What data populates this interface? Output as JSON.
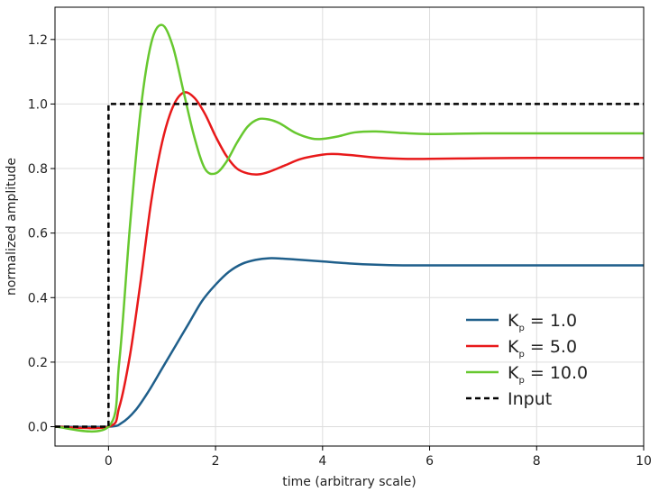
{
  "chart_data": {
    "type": "line",
    "title": "",
    "xlabel": "time (arbitrary scale)",
    "ylabel": "normalized amplitude",
    "xlim": [
      -1,
      10
    ],
    "ylim": [
      -0.06,
      1.3
    ],
    "xticks": [
      0,
      2,
      4,
      6,
      8,
      10
    ],
    "xtick_labels": [
      "0",
      "2",
      "4",
      "6",
      "8",
      "10"
    ],
    "yticks": [
      0.0,
      0.2,
      0.4,
      0.6,
      0.8,
      1.0,
      1.2
    ],
    "ytick_labels": [
      "0.0",
      "0.2",
      "0.4",
      "0.6",
      "0.8",
      "1.0",
      "1.2"
    ],
    "grid": true,
    "legend_position": "bottom-right",
    "series": [
      {
        "name": "K",
        "name_sub": "p",
        "name_suffix": " = 1.0",
        "color": "#1f5f8b",
        "dash": false,
        "x": [
          -1,
          0,
          0.25,
          0.5,
          0.75,
          1.0,
          1.25,
          1.5,
          1.75,
          2.0,
          2.25,
          2.5,
          2.75,
          3.0,
          3.25,
          3.5,
          4.0,
          4.5,
          5.0,
          5.5,
          6.0,
          7.0,
          8.0,
          9.0,
          10.0
        ],
        "y": [
          0,
          0,
          0.012,
          0.05,
          0.11,
          0.18,
          0.25,
          0.32,
          0.39,
          0.44,
          0.48,
          0.505,
          0.517,
          0.522,
          0.521,
          0.518,
          0.512,
          0.506,
          0.502,
          0.5,
          0.5,
          0.5,
          0.5,
          0.5,
          0.5
        ]
      },
      {
        "name": "K",
        "name_sub": "p",
        "name_suffix": " = 5.0",
        "color": "#e8191a",
        "dash": false,
        "x": [
          -1,
          0,
          0.2,
          0.4,
          0.6,
          0.8,
          1.0,
          1.2,
          1.4,
          1.6,
          1.8,
          2.0,
          2.2,
          2.4,
          2.6,
          2.8,
          3.0,
          3.3,
          3.6,
          4.0,
          4.2,
          4.5,
          5.0,
          5.5,
          6.0,
          7.0,
          8.0,
          9.0,
          10.0
        ],
        "y": [
          0,
          0,
          0.06,
          0.22,
          0.45,
          0.7,
          0.88,
          0.99,
          1.035,
          1.02,
          0.97,
          0.9,
          0.84,
          0.8,
          0.785,
          0.782,
          0.79,
          0.81,
          0.83,
          0.843,
          0.845,
          0.842,
          0.834,
          0.83,
          0.83,
          0.832,
          0.833,
          0.833,
          0.833
        ]
      },
      {
        "name": "K",
        "name_sub": "p",
        "name_suffix": " = 10.0",
        "color": "#67c82f",
        "dash": false,
        "x": [
          -1,
          0,
          0.2,
          0.4,
          0.6,
          0.8,
          1.0,
          1.2,
          1.4,
          1.6,
          1.8,
          2.0,
          2.2,
          2.4,
          2.6,
          2.8,
          3.0,
          3.2,
          3.5,
          3.8,
          4.0,
          4.3,
          4.6,
          5.0,
          5.5,
          6.0,
          7.0,
          8.0,
          9.0,
          10.0
        ],
        "y": [
          0,
          0,
          0.2,
          0.62,
          0.98,
          1.19,
          1.245,
          1.18,
          1.04,
          0.9,
          0.8,
          0.785,
          0.82,
          0.88,
          0.93,
          0.953,
          0.952,
          0.94,
          0.91,
          0.893,
          0.892,
          0.9,
          0.912,
          0.915,
          0.91,
          0.907,
          0.909,
          0.909,
          0.909,
          0.909
        ]
      },
      {
        "name": "Input",
        "name_sub": "",
        "name_suffix": "",
        "color": "#000000",
        "dash": true,
        "x": [
          -1,
          0,
          0,
          10
        ],
        "y": [
          0,
          0,
          1,
          1
        ]
      }
    ]
  }
}
